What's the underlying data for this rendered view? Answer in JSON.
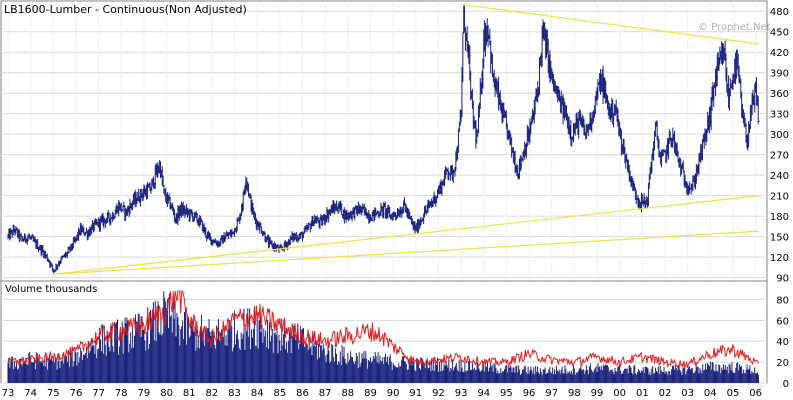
{
  "chart_data": [
    {
      "type": "ohlc",
      "title": "LB1600-Lumber - Continuous(Non Adjusted)",
      "watermark": "© Prophet.Net",
      "xlabel": "",
      "ylabel": "",
      "ylim": [
        85,
        495
      ],
      "y_ticks": [
        90,
        120,
        150,
        180,
        210,
        240,
        270,
        300,
        330,
        360,
        390,
        420,
        450,
        480
      ],
      "x_ticks": [
        "73",
        "74",
        "75",
        "76",
        "77",
        "78",
        "79",
        "80",
        "81",
        "82",
        "83",
        "84",
        "85",
        "86",
        "87",
        "88",
        "89",
        "90",
        "91",
        "92",
        "93",
        "94",
        "95",
        "96",
        "97",
        "98",
        "99",
        "00",
        "01",
        "02",
        "03",
        "04",
        "05",
        "06"
      ],
      "x_range": [
        1973.0,
        2006.15
      ],
      "monthly_close_anchors": [
        [
          1973.0,
          150
        ],
        [
          1973.3,
          160
        ],
        [
          1973.6,
          145
        ],
        [
          1973.9,
          150
        ],
        [
          1974.2,
          140
        ],
        [
          1974.5,
          130
        ],
        [
          1974.8,
          115
        ],
        [
          1975.0,
          100
        ],
        [
          1975.3,
          115
        ],
        [
          1975.6,
          125
        ],
        [
          1975.9,
          140
        ],
        [
          1976.2,
          160
        ],
        [
          1976.5,
          155
        ],
        [
          1976.8,
          165
        ],
        [
          1977.0,
          170
        ],
        [
          1977.3,
          175
        ],
        [
          1977.6,
          180
        ],
        [
          1977.9,
          195
        ],
        [
          1978.2,
          185
        ],
        [
          1978.5,
          200
        ],
        [
          1978.8,
          210
        ],
        [
          1979.0,
          215
        ],
        [
          1979.3,
          220
        ],
        [
          1979.5,
          240
        ],
        [
          1979.7,
          255
        ],
        [
          1979.9,
          210
        ],
        [
          1980.2,
          195
        ],
        [
          1980.4,
          175
        ],
        [
          1980.6,
          190
        ],
        [
          1980.9,
          185
        ],
        [
          1981.2,
          180
        ],
        [
          1981.5,
          170
        ],
        [
          1981.8,
          150
        ],
        [
          1982.0,
          145
        ],
        [
          1982.3,
          140
        ],
        [
          1982.6,
          150
        ],
        [
          1982.9,
          155
        ],
        [
          1983.2,
          175
        ],
        [
          1983.4,
          210
        ],
        [
          1983.5,
          240
        ],
        [
          1983.7,
          200
        ],
        [
          1983.9,
          175
        ],
        [
          1984.2,
          160
        ],
        [
          1984.5,
          140
        ],
        [
          1984.8,
          135
        ],
        [
          1985.0,
          130
        ],
        [
          1985.3,
          140
        ],
        [
          1985.6,
          150
        ],
        [
          1985.9,
          150
        ],
        [
          1986.2,
          160
        ],
        [
          1986.5,
          175
        ],
        [
          1986.8,
          170
        ],
        [
          1987.0,
          180
        ],
        [
          1987.3,
          190
        ],
        [
          1987.6,
          195
        ],
        [
          1987.9,
          180
        ],
        [
          1988.2,
          185
        ],
        [
          1988.5,
          190
        ],
        [
          1988.8,
          185
        ],
        [
          1989.0,
          180
        ],
        [
          1989.3,
          185
        ],
        [
          1989.6,
          190
        ],
        [
          1989.9,
          180
        ],
        [
          1990.2,
          185
        ],
        [
          1990.5,
          195
        ],
        [
          1990.8,
          170
        ],
        [
          1991.0,
          160
        ],
        [
          1991.3,
          180
        ],
        [
          1991.6,
          195
        ],
        [
          1991.9,
          210
        ],
        [
          1992.2,
          230
        ],
        [
          1992.4,
          250
        ],
        [
          1992.6,
          240
        ],
        [
          1992.8,
          270
        ],
        [
          1993.0,
          330
        ],
        [
          1993.1,
          480
        ],
        [
          1993.3,
          420
        ],
        [
          1993.5,
          330
        ],
        [
          1993.7,
          290
        ],
        [
          1993.9,
          380
        ],
        [
          1994.0,
          440
        ],
        [
          1994.2,
          460
        ],
        [
          1994.4,
          380
        ],
        [
          1994.6,
          360
        ],
        [
          1994.8,
          330
        ],
        [
          1995.0,
          310
        ],
        [
          1995.3,
          270
        ],
        [
          1995.5,
          245
        ],
        [
          1995.8,
          280
        ],
        [
          1996.0,
          300
        ],
        [
          1996.2,
          330
        ],
        [
          1996.4,
          370
        ],
        [
          1996.6,
          450
        ],
        [
          1996.8,
          420
        ],
        [
          1997.0,
          380
        ],
        [
          1997.3,
          350
        ],
        [
          1997.6,
          330
        ],
        [
          1997.9,
          300
        ],
        [
          1998.2,
          320
        ],
        [
          1998.5,
          300
        ],
        [
          1998.8,
          330
        ],
        [
          1999.0,
          360
        ],
        [
          1999.2,
          380
        ],
        [
          1999.4,
          350
        ],
        [
          1999.6,
          330
        ],
        [
          1999.8,
          340
        ],
        [
          2000.0,
          300
        ],
        [
          2000.3,
          260
        ],
        [
          2000.6,
          220
        ],
        [
          2000.9,
          200
        ],
        [
          2001.2,
          200
        ],
        [
          2001.4,
          260
        ],
        [
          2001.6,
          310
        ],
        [
          2001.8,
          260
        ],
        [
          2002.0,
          270
        ],
        [
          2002.3,
          300
        ],
        [
          2002.6,
          260
        ],
        [
          2002.9,
          230
        ],
        [
          2003.2,
          220
        ],
        [
          2003.5,
          260
        ],
        [
          2003.8,
          300
        ],
        [
          2004.0,
          330
        ],
        [
          2004.2,
          380
        ],
        [
          2004.4,
          400
        ],
        [
          2004.6,
          420
        ],
        [
          2004.8,
          350
        ],
        [
          2005.0,
          390
        ],
        [
          2005.2,
          400
        ],
        [
          2005.4,
          330
        ],
        [
          2005.6,
          290
        ],
        [
          2005.8,
          330
        ],
        [
          2006.0,
          360
        ],
        [
          2006.15,
          320
        ]
      ],
      "trendlines": [
        {
          "from": [
            1975.0,
            95
          ],
          "to": [
            2006.15,
            210
          ]
        },
        {
          "from": [
            1975.0,
            95
          ],
          "to": [
            2006.15,
            158
          ]
        },
        {
          "from": [
            1993.0,
            490
          ],
          "to": [
            2006.15,
            432
          ]
        }
      ],
      "colors": {
        "bars": "#1a237e",
        "trend": "#f0e046",
        "frame": "#808080",
        "grid": "#d9d9d9"
      }
    },
    {
      "type": "bar",
      "title": "Volume  thousands",
      "unit": "thousands",
      "ylim": [
        0,
        90
      ],
      "y_ticks": [
        0,
        20,
        40,
        60,
        80
      ],
      "x_range": [
        1973.0,
        2006.15
      ],
      "volume_anchors": [
        [
          1973.0,
          18
        ],
        [
          1974.0,
          22
        ],
        [
          1975.0,
          20
        ],
        [
          1976.0,
          25
        ],
        [
          1977.0,
          40
        ],
        [
          1978.0,
          45
        ],
        [
          1979.0,
          50
        ],
        [
          1980.0,
          65
        ],
        [
          1980.5,
          55
        ],
        [
          1981.0,
          50
        ],
        [
          1982.0,
          45
        ],
        [
          1983.0,
          50
        ],
        [
          1984.0,
          55
        ],
        [
          1985.0,
          45
        ],
        [
          1986.0,
          40
        ],
        [
          1987.0,
          30
        ],
        [
          1988.0,
          25
        ],
        [
          1989.0,
          22
        ],
        [
          1990.0,
          20
        ],
        [
          1991.0,
          18
        ],
        [
          1992.0,
          18
        ],
        [
          1993.0,
          17
        ],
        [
          1994.0,
          15
        ],
        [
          1995.0,
          13
        ],
        [
          1996.0,
          12
        ],
        [
          1997.0,
          12
        ],
        [
          1998.0,
          13
        ],
        [
          1999.0,
          14
        ],
        [
          2000.0,
          13
        ],
        [
          2001.0,
          12
        ],
        [
          2002.0,
          12
        ],
        [
          2003.0,
          13
        ],
        [
          2004.0,
          15
        ],
        [
          2005.0,
          15
        ],
        [
          2006.0,
          12
        ],
        [
          2006.15,
          10
        ]
      ],
      "open_interest_anchors": [
        [
          1973.0,
          20
        ],
        [
          1974.0,
          22
        ],
        [
          1975.0,
          25
        ],
        [
          1976.0,
          30
        ],
        [
          1977.0,
          45
        ],
        [
          1978.0,
          50
        ],
        [
          1979.0,
          55
        ],
        [
          1980.0,
          70
        ],
        [
          1980.5,
          90
        ],
        [
          1981.0,
          60
        ],
        [
          1982.0,
          40
        ],
        [
          1983.0,
          60
        ],
        [
          1984.0,
          65
        ],
        [
          1985.0,
          55
        ],
        [
          1986.0,
          45
        ],
        [
          1987.0,
          40
        ],
        [
          1988.0,
          45
        ],
        [
          1989.0,
          50
        ],
        [
          1989.5,
          45
        ],
        [
          1990.0,
          35
        ],
        [
          1991.0,
          20
        ],
        [
          1992.0,
          22
        ],
        [
          1993.0,
          25
        ],
        [
          1994.0,
          20
        ],
        [
          1995.0,
          20
        ],
        [
          1996.0,
          28
        ],
        [
          1997.0,
          22
        ],
        [
          1998.0,
          20
        ],
        [
          1999.0,
          25
        ],
        [
          2000.0,
          20
        ],
        [
          2001.0,
          25
        ],
        [
          2002.0,
          20
        ],
        [
          2003.0,
          18
        ],
        [
          2004.0,
          28
        ],
        [
          2005.0,
          32
        ],
        [
          2006.0,
          20
        ],
        [
          2006.15,
          15
        ]
      ],
      "colors": {
        "bars": "#1a237e",
        "line": "#e02020"
      }
    }
  ]
}
